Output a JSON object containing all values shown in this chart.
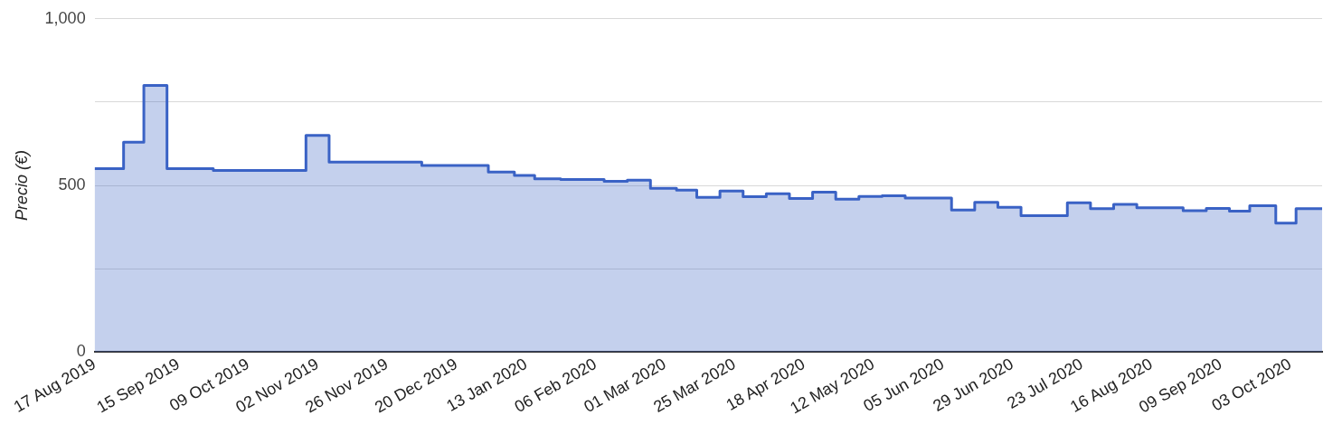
{
  "chart_data": {
    "type": "area",
    "ylabel": "Precio (€)",
    "x": [
      "2019-08-17",
      "2019-08-27",
      "2019-08-27",
      "2019-09-03",
      "2019-09-03",
      "2019-09-11",
      "2019-09-11",
      "2019-09-27",
      "2019-09-27",
      "2019-10-29",
      "2019-10-29",
      "2019-11-06",
      "2019-11-06",
      "2019-12-08",
      "2019-12-08",
      "2019-12-31",
      "2019-12-31",
      "2020-01-09",
      "2020-01-09",
      "2020-01-16",
      "2020-01-16",
      "2020-01-25",
      "2020-01-25",
      "2020-02-09",
      "2020-02-09",
      "2020-02-17",
      "2020-02-17",
      "2020-02-25",
      "2020-02-25",
      "2020-03-05",
      "2020-03-05",
      "2020-03-12",
      "2020-03-12",
      "2020-03-20",
      "2020-03-20",
      "2020-03-28",
      "2020-03-28",
      "2020-04-05",
      "2020-04-05",
      "2020-04-13",
      "2020-04-13",
      "2020-04-21",
      "2020-04-21",
      "2020-04-29",
      "2020-04-29",
      "2020-05-07",
      "2020-05-07",
      "2020-05-15",
      "2020-05-15",
      "2020-05-23",
      "2020-05-23",
      "2020-06-08",
      "2020-06-08",
      "2020-06-16",
      "2020-06-16",
      "2020-06-24",
      "2020-06-24",
      "2020-07-02",
      "2020-07-02",
      "2020-07-18",
      "2020-07-18",
      "2020-07-26",
      "2020-07-26",
      "2020-08-03",
      "2020-08-03",
      "2020-08-11",
      "2020-08-11",
      "2020-08-27",
      "2020-08-27",
      "2020-09-04",
      "2020-09-04",
      "2020-09-12",
      "2020-09-12",
      "2020-09-19",
      "2020-09-19",
      "2020-09-28",
      "2020-09-28",
      "2020-10-05",
      "2020-10-05",
      "2020-10-14"
    ],
    "series": [
      {
        "color": "#3a62c5",
        "values": [
          550,
          550,
          630,
          630,
          800,
          800,
          550,
          550,
          545,
          545,
          650,
          650,
          570,
          570,
          560,
          560,
          540,
          540,
          530,
          530,
          520,
          520,
          518,
          518,
          512,
          512,
          516,
          516,
          491,
          491,
          486,
          486,
          464,
          464,
          483,
          483,
          466,
          466,
          475,
          475,
          461,
          461,
          480,
          480,
          459,
          459,
          467,
          467,
          469,
          469,
          462,
          462,
          426,
          426,
          449,
          449,
          434,
          434,
          409,
          409,
          448,
          448,
          430,
          430,
          443,
          443,
          433,
          433,
          424,
          424,
          431,
          431,
          423,
          423,
          439,
          439,
          387,
          387,
          430,
          430
        ]
      }
    ],
    "xlim": [
      "2019-08-17",
      "2020-10-14"
    ],
    "xticks": [
      {
        "value": "2019-08-17",
        "label": "17 Aug 2019"
      },
      {
        "value": "2019-09-15",
        "label": "15 Sep 2019"
      },
      {
        "value": "2019-10-09",
        "label": "09 Oct 2019"
      },
      {
        "value": "2019-11-02",
        "label": "02 Nov 2019"
      },
      {
        "value": "2019-11-26",
        "label": "26 Nov 2019"
      },
      {
        "value": "2019-12-20",
        "label": "20 Dec 2019"
      },
      {
        "value": "2020-01-13",
        "label": "13 Jan 2020"
      },
      {
        "value": "2020-02-06",
        "label": "06 Feb 2020"
      },
      {
        "value": "2020-03-01",
        "label": "01 Mar 2020"
      },
      {
        "value": "2020-03-25",
        "label": "25 Mar 2020"
      },
      {
        "value": "2020-04-18",
        "label": "18 Apr 2020"
      },
      {
        "value": "2020-05-12",
        "label": "12 May 2020"
      },
      {
        "value": "2020-06-05",
        "label": "05 Jun 2020"
      },
      {
        "value": "2020-06-29",
        "label": "29 Jun 2020"
      },
      {
        "value": "2020-07-23",
        "label": "23 Jul 2020"
      },
      {
        "value": "2020-08-16",
        "label": "16 Aug 2020"
      },
      {
        "value": "2020-09-09",
        "label": "09 Sep 2020"
      },
      {
        "value": "2020-10-03",
        "label": "03 Oct 2020"
      }
    ],
    "ylim": [
      0,
      1000
    ],
    "yticks": [
      0,
      {
        "value": 250,
        "label": null
      },
      500,
      {
        "value": 750,
        "label": null
      },
      {
        "value": 1000,
        "label": "1,000"
      }
    ],
    "grid": "y",
    "legend": false
  }
}
